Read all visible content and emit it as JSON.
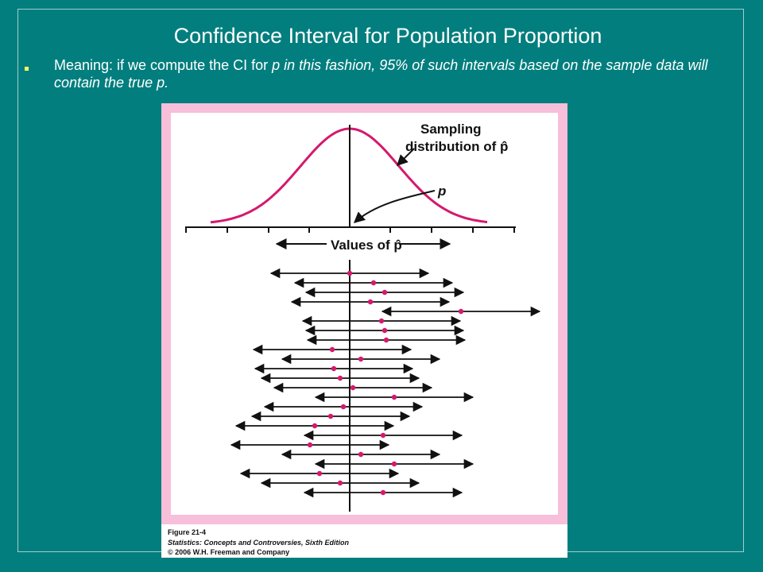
{
  "slide": {
    "title": "Confidence Interval for Population Proportion",
    "bullet": {
      "prefix": "Meaning: if we compute the CI for ",
      "italic_text": "p in this fashion, 95% of such intervals based on the sample data will contain the true p."
    }
  },
  "figure": {
    "sampling_label_line1": "Sampling",
    "sampling_label_line2": "distribution of p̂",
    "p_label": "p",
    "values_label": "Values of p̂",
    "caption": {
      "figure_number": "Figure 21-4",
      "book": "Statistics: Concepts and Controversies, Sixth Edition",
      "copyright": "© 2006 W.H. Freeman and Company"
    },
    "colors": {
      "border_pink": "#f7bfd9",
      "curve": "#d4196e",
      "dot": "#d4196e"
    },
    "intervals_pixels_note": "",
    "intervals": [
      {
        "center": 0.0,
        "contains_p": true
      },
      {
        "center": 0.3,
        "contains_p": true
      },
      {
        "center": 0.44,
        "contains_p": true
      },
      {
        "center": 0.26,
        "contains_p": true
      },
      {
        "center": 1.4,
        "contains_p": false
      },
      {
        "center": 0.4,
        "contains_p": true
      },
      {
        "center": 0.44,
        "contains_p": true
      },
      {
        "center": 0.46,
        "contains_p": true
      },
      {
        "center": -0.22,
        "contains_p": true
      },
      {
        "center": 0.14,
        "contains_p": true
      },
      {
        "center": -0.2,
        "contains_p": true
      },
      {
        "center": -0.12,
        "contains_p": true
      },
      {
        "center": 0.04,
        "contains_p": true
      },
      {
        "center": 0.56,
        "contains_p": true
      },
      {
        "center": -0.08,
        "contains_p": true
      },
      {
        "center": -0.24,
        "contains_p": true
      },
      {
        "center": -0.44,
        "contains_p": true
      },
      {
        "center": 0.42,
        "contains_p": true
      },
      {
        "center": -0.5,
        "contains_p": true
      },
      {
        "center": 0.14,
        "contains_p": true
      },
      {
        "center": 0.56,
        "contains_p": true
      },
      {
        "center": -0.38,
        "contains_p": true
      },
      {
        "center": -0.12,
        "contains_p": true
      },
      {
        "center": 0.42,
        "contains_p": true
      }
    ]
  }
}
